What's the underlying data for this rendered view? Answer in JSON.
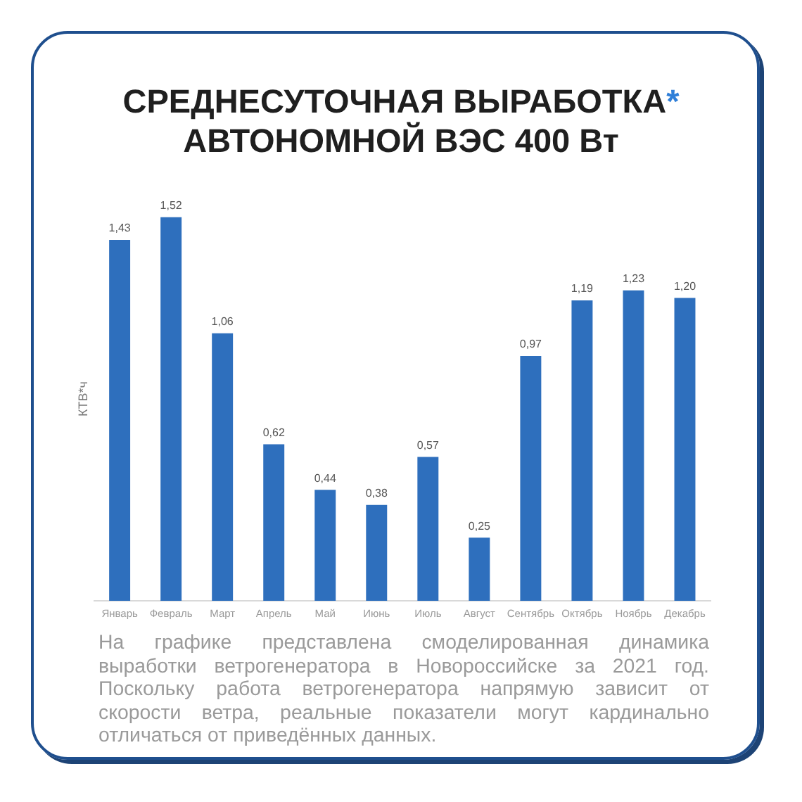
{
  "chart_data": {
    "type": "bar",
    "title": "СРЕДНЕСУТОЧНАЯ ВЫРАБОТКА* АВТОНОМНОЙ ВЭС 400 Вт",
    "ylabel": "КТВ*ч",
    "categories": [
      "Январь",
      "Февраль",
      "Март",
      "Апрель",
      "Май",
      "Июнь",
      "Июль",
      "Август",
      "Сентябрь",
      "Октябрь",
      "Ноябрь",
      "Декабрь"
    ],
    "values": [
      1.43,
      1.52,
      1.06,
      0.62,
      0.44,
      0.38,
      0.57,
      0.25,
      0.97,
      1.19,
      1.23,
      1.2
    ],
    "value_labels": [
      "1,43",
      "1,52",
      "1,06",
      "0,62",
      "0,44",
      "0,38",
      "0,57",
      "0,25",
      "0,97",
      "1,19",
      "1,23",
      "1,20"
    ],
    "color": "#2e6fbd",
    "grid": false,
    "legend": false,
    "annotations": [
      "На графике представлена смоделированная динамика выработки ветрогенератора в Новороссийске за 2021 год. Поскольку работа ветрогенератора напрямую зависит от скорости ветра, реальные показатели могут кардинально отличаться от приведённых данных."
    ]
  }
}
